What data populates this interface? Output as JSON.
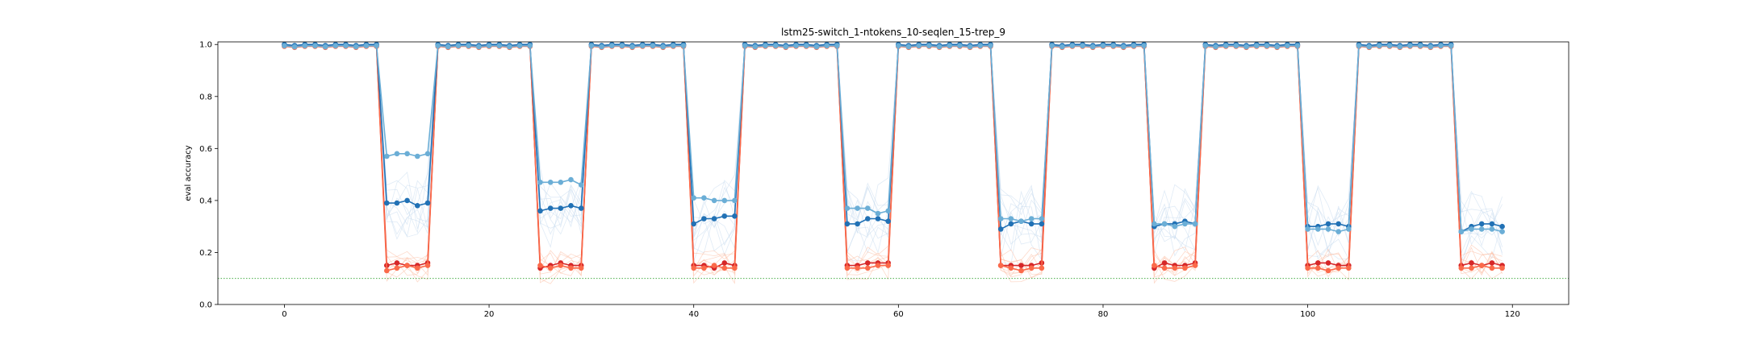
{
  "chart_data": {
    "type": "line",
    "title": "lstm25-switch_1-ntokens_10-seqlen_15-trep_9",
    "xlabel": "",
    "ylabel": "eval accuracy",
    "xlim": [
      -6.5,
      125.5
    ],
    "ylim": [
      0.0,
      1.01
    ],
    "xticks": [
      0,
      20,
      40,
      60,
      80,
      100,
      120
    ],
    "yticks": [
      0.0,
      0.2,
      0.4,
      0.6,
      0.8,
      1.0
    ],
    "xtick_labels": [
      "0",
      "20",
      "40",
      "60",
      "80",
      "100",
      "120"
    ],
    "ytick_labels": [
      "0.0",
      "0.2",
      "0.4",
      "0.6",
      "0.8",
      "1.0"
    ],
    "grid": false,
    "legend": "none",
    "reference_line": {
      "y": 0.1,
      "color": "#2ca02c",
      "style": "dotted"
    },
    "segments": [
      {
        "start": 0,
        "mode": "high"
      },
      {
        "start": 10,
        "mode": "low"
      },
      {
        "start": 15,
        "mode": "high"
      },
      {
        "start": 25,
        "mode": "low"
      },
      {
        "start": 30,
        "mode": "high"
      },
      {
        "start": 40,
        "mode": "low"
      },
      {
        "start": 45,
        "mode": "high"
      },
      {
        "start": 55,
        "mode": "low"
      },
      {
        "start": 60,
        "mode": "high"
      },
      {
        "start": 70,
        "mode": "low"
      },
      {
        "start": 75,
        "mode": "high"
      },
      {
        "start": 85,
        "mode": "low"
      },
      {
        "start": 90,
        "mode": "high"
      },
      {
        "start": 100,
        "mode": "low"
      },
      {
        "start": 105,
        "mode": "high"
      },
      {
        "start": 115,
        "mode": "low"
      }
    ],
    "x_end": 119,
    "series": [
      {
        "color": "#d62728",
        "role": "red-main",
        "low_values": [
          [
            0.15,
            0.16,
            0.15,
            0.15,
            0.16
          ],
          [
            0.14,
            0.15,
            0.16,
            0.15,
            0.15
          ],
          [
            0.15,
            0.15,
            0.14,
            0.16,
            0.15
          ],
          [
            0.15,
            0.15,
            0.16,
            0.16,
            0.16
          ],
          [
            0.15,
            0.15,
            0.15,
            0.15,
            0.16
          ],
          [
            0.14,
            0.16,
            0.15,
            0.15,
            0.16
          ],
          [
            0.15,
            0.16,
            0.16,
            0.15,
            0.15
          ],
          [
            0.15,
            0.16,
            0.15,
            0.16,
            0.15
          ]
        ]
      },
      {
        "color": "#fb6a4a",
        "role": "red-light",
        "low_values": [
          [
            0.13,
            0.14,
            0.15,
            0.14,
            0.15
          ],
          [
            0.15,
            0.14,
            0.15,
            0.14,
            0.14
          ],
          [
            0.14,
            0.14,
            0.15,
            0.14,
            0.14
          ],
          [
            0.14,
            0.14,
            0.14,
            0.15,
            0.15
          ],
          [
            0.15,
            0.14,
            0.13,
            0.14,
            0.14
          ],
          [
            0.15,
            0.14,
            0.14,
            0.14,
            0.15
          ],
          [
            0.14,
            0.14,
            0.13,
            0.14,
            0.14
          ],
          [
            0.14,
            0.14,
            0.15,
            0.14,
            0.14
          ]
        ]
      },
      {
        "color": "#2171b5",
        "role": "blue-main",
        "low_values": [
          [
            0.39,
            0.39,
            0.4,
            0.38,
            0.39
          ],
          [
            0.36,
            0.37,
            0.37,
            0.38,
            0.37
          ],
          [
            0.31,
            0.33,
            0.33,
            0.34,
            0.34
          ],
          [
            0.31,
            0.31,
            0.33,
            0.33,
            0.32
          ],
          [
            0.29,
            0.31,
            0.32,
            0.31,
            0.31
          ],
          [
            0.3,
            0.31,
            0.31,
            0.32,
            0.31
          ],
          [
            0.3,
            0.3,
            0.31,
            0.31,
            0.3
          ],
          [
            0.28,
            0.3,
            0.31,
            0.31,
            0.3
          ]
        ]
      },
      {
        "color": "#6baed6",
        "role": "blue-light",
        "low_values": [
          [
            0.57,
            0.58,
            0.58,
            0.57,
            0.58
          ],
          [
            0.47,
            0.47,
            0.47,
            0.48,
            0.46
          ],
          [
            0.41,
            0.41,
            0.4,
            0.4,
            0.4
          ],
          [
            0.37,
            0.37,
            0.37,
            0.35,
            0.36
          ],
          [
            0.33,
            0.33,
            0.32,
            0.33,
            0.33
          ],
          [
            0.31,
            0.31,
            0.3,
            0.31,
            0.31
          ],
          [
            0.29,
            0.29,
            0.29,
            0.28,
            0.29
          ],
          [
            0.28,
            0.29,
            0.29,
            0.29,
            0.28
          ]
        ]
      }
    ]
  }
}
